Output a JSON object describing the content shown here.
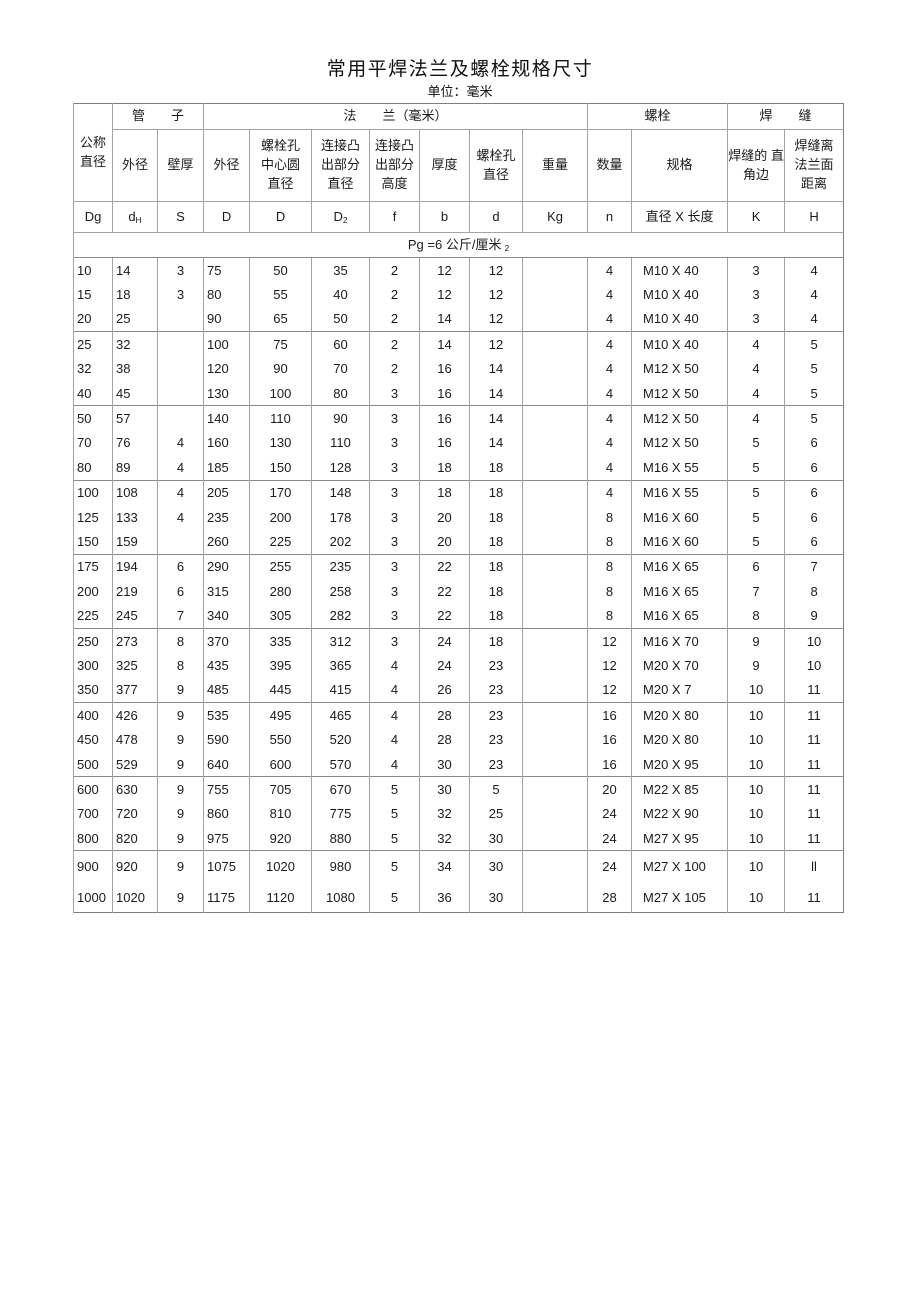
{
  "page": {
    "title": "常用平焊法兰及螺栓规格尺寸",
    "unit_note": "单位：毫米"
  },
  "table": {
    "group_headers": [
      {
        "label": "管　　子"
      },
      {
        "label": "法　　兰（毫米）"
      },
      {
        "label": "螺栓"
      },
      {
        "label": "焊　　缝"
      }
    ],
    "column_headers": [
      "公称\n直径",
      "外径",
      "壁厚",
      "外径",
      "螺栓孔\n中心圆\n直径",
      "连接凸\n出部分\n直径",
      "连接凸\n出部分\n高度",
      "厚度",
      "螺栓孔\n直径",
      "重量",
      "数量",
      "规格",
      "焊缝的 直\n角边",
      "焊缝离\n法兰面\n距离"
    ],
    "symbols": [
      {
        "base": "Dg",
        "sub": ""
      },
      {
        "base": "d",
        "sub": "H"
      },
      {
        "base": "S",
        "sub": ""
      },
      {
        "base": "D",
        "sub": ""
      },
      {
        "base": "D",
        "sub": ""
      },
      {
        "base": "D",
        "sub": "2"
      },
      {
        "base": "f",
        "sub": ""
      },
      {
        "base": "b",
        "sub": ""
      },
      {
        "base": "d",
        "sub": ""
      },
      {
        "base": "Kg",
        "sub": ""
      },
      {
        "base": "n",
        "sub": ""
      },
      {
        "base": "直径 X 长度",
        "sub": ""
      },
      {
        "base": "K",
        "sub": ""
      },
      {
        "base": "H",
        "sub": ""
      }
    ],
    "pg_note": {
      "text": "Pg =6 公斤/厘米",
      "sub": "2"
    },
    "row_groups": [
      [
        [
          "10",
          "14",
          "3",
          "75",
          "50",
          "35",
          "2",
          "12",
          "12",
          "",
          "4",
          "M10 X 40",
          "3",
          "4"
        ],
        [
          "15",
          "18",
          "3",
          "80",
          "55",
          "40",
          "2",
          "12",
          "12",
          "",
          "4",
          "M10 X 40",
          "3",
          "4"
        ],
        [
          "20",
          "25",
          "",
          "90",
          "65",
          "50",
          "2",
          "14",
          "12",
          "",
          "4",
          "M10 X 40",
          "3",
          "4"
        ]
      ],
      [
        [
          "25",
          "32",
          "",
          "100",
          "75",
          "60",
          "2",
          "14",
          "12",
          "",
          "4",
          "M10 X 40",
          "4",
          "5"
        ],
        [
          "32",
          "38",
          "",
          "120",
          "90",
          "70",
          "2",
          "16",
          "14",
          "",
          "4",
          "M12 X 50",
          "4",
          "5"
        ],
        [
          "40",
          "45",
          "",
          "130",
          "100",
          "80",
          "3",
          "16",
          "14",
          "",
          "4",
          "M12 X 50",
          "4",
          "5"
        ]
      ],
      [
        [
          "50",
          "57",
          "",
          "140",
          "110",
          "90",
          "3",
          "16",
          "14",
          "",
          "4",
          "M12 X 50",
          "4",
          "5"
        ],
        [
          "70",
          "76",
          "4",
          "160",
          "130",
          "110",
          "3",
          "16",
          "14",
          "",
          "4",
          "M12 X 50",
          "5",
          "6"
        ],
        [
          "80",
          "89",
          "4",
          "185",
          "150",
          "128",
          "3",
          "18",
          "18",
          "",
          "4",
          "M16 X 55",
          "5",
          "6"
        ]
      ],
      [
        [
          "100",
          "108",
          "4",
          "205",
          "170",
          "148",
          "3",
          "18",
          "18",
          "",
          "4",
          "M16 X 55",
          "5",
          "6"
        ],
        [
          "125",
          "133",
          "4",
          "235",
          "200",
          "178",
          "3",
          "20",
          "18",
          "",
          "8",
          "M16 X 60",
          "5",
          "6"
        ],
        [
          "150",
          "159",
          "",
          "260",
          "225",
          "202",
          "3",
          "20",
          "18",
          "",
          "8",
          "M16 X 60",
          "5",
          "6"
        ]
      ],
      [
        [
          "175",
          "194",
          "6",
          "290",
          "255",
          "235",
          "3",
          "22",
          "18",
          "",
          "8",
          "M16 X 65",
          "6",
          "7"
        ],
        [
          "200",
          "219",
          "6",
          "315",
          "280",
          "258",
          "3",
          "22",
          "18",
          "",
          "8",
          "M16 X 65",
          "7",
          "8"
        ],
        [
          "225",
          "245",
          "7",
          "340",
          "305",
          "282",
          "3",
          "22",
          "18",
          "",
          "8",
          "M16 X 65",
          "8",
          "9"
        ]
      ],
      [
        [
          "250",
          "273",
          "8",
          "370",
          "335",
          "312",
          "3",
          "24",
          "18",
          "",
          "12",
          "M16 X 70",
          "9",
          "10"
        ],
        [
          "300",
          "325",
          "8",
          "435",
          "395",
          "365",
          "4",
          "24",
          "23",
          "",
          "12",
          "M20 X 70",
          "9",
          "10"
        ],
        [
          "350",
          "377",
          "9",
          "485",
          "445",
          "415",
          "4",
          "26",
          "23",
          "",
          "12",
          "M20 X 7",
          "10",
          "11"
        ]
      ],
      [
        [
          "400",
          "426",
          "9",
          "535",
          "495",
          "465",
          "4",
          "28",
          "23",
          "",
          "16",
          "M20 X 80",
          "10",
          "11"
        ],
        [
          "450",
          "478",
          "9",
          "590",
          "550",
          "520",
          "4",
          "28",
          "23",
          "",
          "16",
          "M20 X 80",
          "10",
          "11"
        ],
        [
          "500",
          "529",
          "9",
          "640",
          "600",
          "570",
          "4",
          "30",
          "23",
          "",
          "16",
          "M20 X 95",
          "10",
          "11"
        ]
      ],
      [
        [
          "600",
          "630",
          "9",
          "755",
          "705",
          "670",
          "5",
          "30",
          "5",
          "",
          "20",
          "M22 X 85",
          "10",
          "11"
        ],
        [
          "700",
          "720",
          "9",
          "860",
          "810",
          "775",
          "5",
          "32",
          "25",
          "",
          "24",
          "M22 X 90",
          "10",
          "11"
        ],
        [
          "800",
          "820",
          "9",
          "975",
          "920",
          "880",
          "5",
          "32",
          "30",
          "",
          "24",
          "M27 X 95",
          "10",
          "11"
        ]
      ],
      [
        [
          "900",
          "920",
          "9",
          "1075",
          "1020",
          "980",
          "5",
          "34",
          "30",
          "",
          "24",
          "M27 X 100",
          "10",
          "ll"
        ],
        [
          "1000",
          "1020",
          "9",
          "1175",
          "1120",
          "1080",
          "5",
          "36",
          "30",
          "",
          "28",
          "M27 X 105",
          "10",
          "11"
        ]
      ]
    ]
  }
}
